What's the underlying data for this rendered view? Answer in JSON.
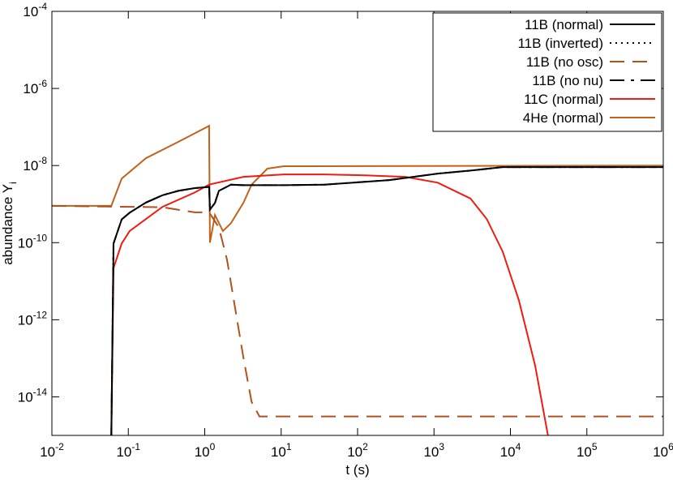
{
  "chart_data": {
    "type": "line",
    "xlabel": "t (s)",
    "ylabel": "abundance Y_i",
    "xlog": true,
    "ylog": true,
    "legend": "top-right",
    "xlim": [
      0.01,
      1000000
    ],
    "ylim": [
      1e-15,
      0.0001
    ],
    "xticks": [
      {
        "value": 0.01,
        "label": "10^-2"
      },
      {
        "value": 0.1,
        "label": "10^-1"
      },
      {
        "value": 1,
        "label": "10^0"
      },
      {
        "value": 10,
        "label": "10^1"
      },
      {
        "value": 100,
        "label": "10^2"
      },
      {
        "value": 1000,
        "label": "10^3"
      },
      {
        "value": 10000,
        "label": "10^4"
      },
      {
        "value": 100000,
        "label": "10^5"
      },
      {
        "value": 1000000,
        "label": "10^6"
      }
    ],
    "yticks": [
      {
        "value": 1e-14,
        "label": "10^-14"
      },
      {
        "value": 1e-12,
        "label": "10^-12"
      },
      {
        "value": 1e-10,
        "label": "10^-10"
      },
      {
        "value": 1e-08,
        "label": "10^-8"
      },
      {
        "value": 1e-06,
        "label": "10^-6"
      },
      {
        "value": 0.0001,
        "label": "10^-4"
      }
    ],
    "series": [
      {
        "name": "11B (normal)",
        "color": "#000000",
        "dash": "solid",
        "x": [
          0.06,
          0.064,
          0.082,
          0.104,
          0.17,
          0.28,
          0.45,
          0.74,
          1.14,
          1.17,
          1.36,
          1.53,
          2.2,
          3.2,
          10.8,
          37,
          260,
          1120,
          3000,
          7900,
          1000000
        ],
        "values": [
          1e-15,
          9.5e-11,
          4e-10,
          6e-10,
          1.1e-09,
          1.7e-09,
          2.2e-09,
          2.6e-09,
          2.8e-09,
          7.2e-10,
          1.07e-09,
          2.2e-09,
          3.2e-09,
          3.1e-09,
          3.1e-09,
          3.2e-09,
          4.2e-09,
          6.2e-09,
          7.4e-09,
          9.1e-09,
          9.1e-09
        ]
      },
      {
        "name": "11B (inverted)",
        "color": "#000000",
        "dash": "dotted",
        "x": [
          0.06,
          0.064,
          0.082,
          0.104,
          0.17,
          0.28,
          0.45,
          0.74,
          1.14,
          1.17,
          1.36,
          1.53,
          2.2,
          3.2,
          10.8,
          37,
          260,
          1120,
          3000,
          7900,
          1000000
        ],
        "values": [
          1e-15,
          9.5e-11,
          4e-10,
          6e-10,
          1.1e-09,
          1.7e-09,
          2.2e-09,
          2.6e-09,
          2.8e-09,
          7.2e-10,
          1.07e-09,
          2.2e-09,
          3.2e-09,
          3.1e-09,
          3.1e-09,
          3.2e-09,
          4.2e-09,
          6.2e-09,
          7.4e-09,
          9.1e-09,
          9.1e-09
        ]
      },
      {
        "name": "11B (no osc)",
        "color": "#b0521a",
        "dash": "dashed",
        "x": [
          0.01,
          0.28,
          0.74,
          1.14,
          1.26,
          1.53,
          1.96,
          2.5,
          3.2,
          4.1,
          5.2,
          1000000
        ],
        "values": [
          9e-10,
          8.3e-10,
          6.1e-10,
          6.1e-10,
          4.5e-10,
          2.5e-10,
          3.6e-11,
          2e-12,
          1.07e-13,
          7.4e-15,
          3.1e-15,
          3.1e-15
        ]
      },
      {
        "name": "11B (no nu)",
        "color": "#000000",
        "dash": "dashdot",
        "x": [
          0.06,
          0.064,
          0.082,
          0.104,
          0.17,
          0.28,
          0.45,
          0.74,
          1.14,
          1.17,
          1.36,
          1.53,
          2.2,
          3.2,
          10.8,
          37,
          260,
          1120,
          3000,
          7900,
          1000000
        ],
        "values": [
          1e-15,
          9.5e-11,
          4e-10,
          6e-10,
          1.1e-09,
          1.7e-09,
          2.2e-09,
          2.6e-09,
          2.8e-09,
          7.2e-10,
          1.07e-09,
          2.2e-09,
          3.2e-09,
          3.1e-09,
          3.1e-09,
          3.2e-09,
          4.2e-09,
          6.2e-09,
          7.4e-09,
          9.1e-09,
          9.1e-09
        ]
      },
      {
        "name": "11C (normal)",
        "color": "#ee1c10",
        "dash": "solid",
        "x": [
          0.06,
          0.064,
          0.082,
          0.104,
          0.28,
          0.74,
          1.14,
          3.2,
          10.8,
          37,
          125,
          420,
          1120,
          3000,
          4900,
          7900,
          12900,
          21000,
          31000
        ],
        "values": [
          1e-15,
          2.2e-11,
          9.5e-11,
          2e-10,
          8.5e-10,
          2e-09,
          3.2e-09,
          5.1e-09,
          5.9e-09,
          5.9e-09,
          5.6e-09,
          5.1e-09,
          3.6e-09,
          1.4e-09,
          4.1e-10,
          5.9e-11,
          3.2e-12,
          6.6e-14,
          1e-15
        ]
      },
      {
        "name": "4He (normal)",
        "color": "#c0621c",
        "dash": "solid",
        "x": [
          0.01,
          0.06,
          0.082,
          0.17,
          0.45,
          1.14,
          1.17,
          1.36,
          1.73,
          2.2,
          3.2,
          4.1,
          6.6,
          10.8,
          1000000
        ],
        "values": [
          9e-10,
          9e-10,
          4.6e-09,
          1.55e-08,
          4.1e-08,
          1.07e-07,
          1e-10,
          5.2e-10,
          2e-10,
          3.2e-10,
          1.07e-09,
          3.2e-09,
          8.3e-09,
          9.6e-09,
          1e-08
        ]
      }
    ]
  }
}
